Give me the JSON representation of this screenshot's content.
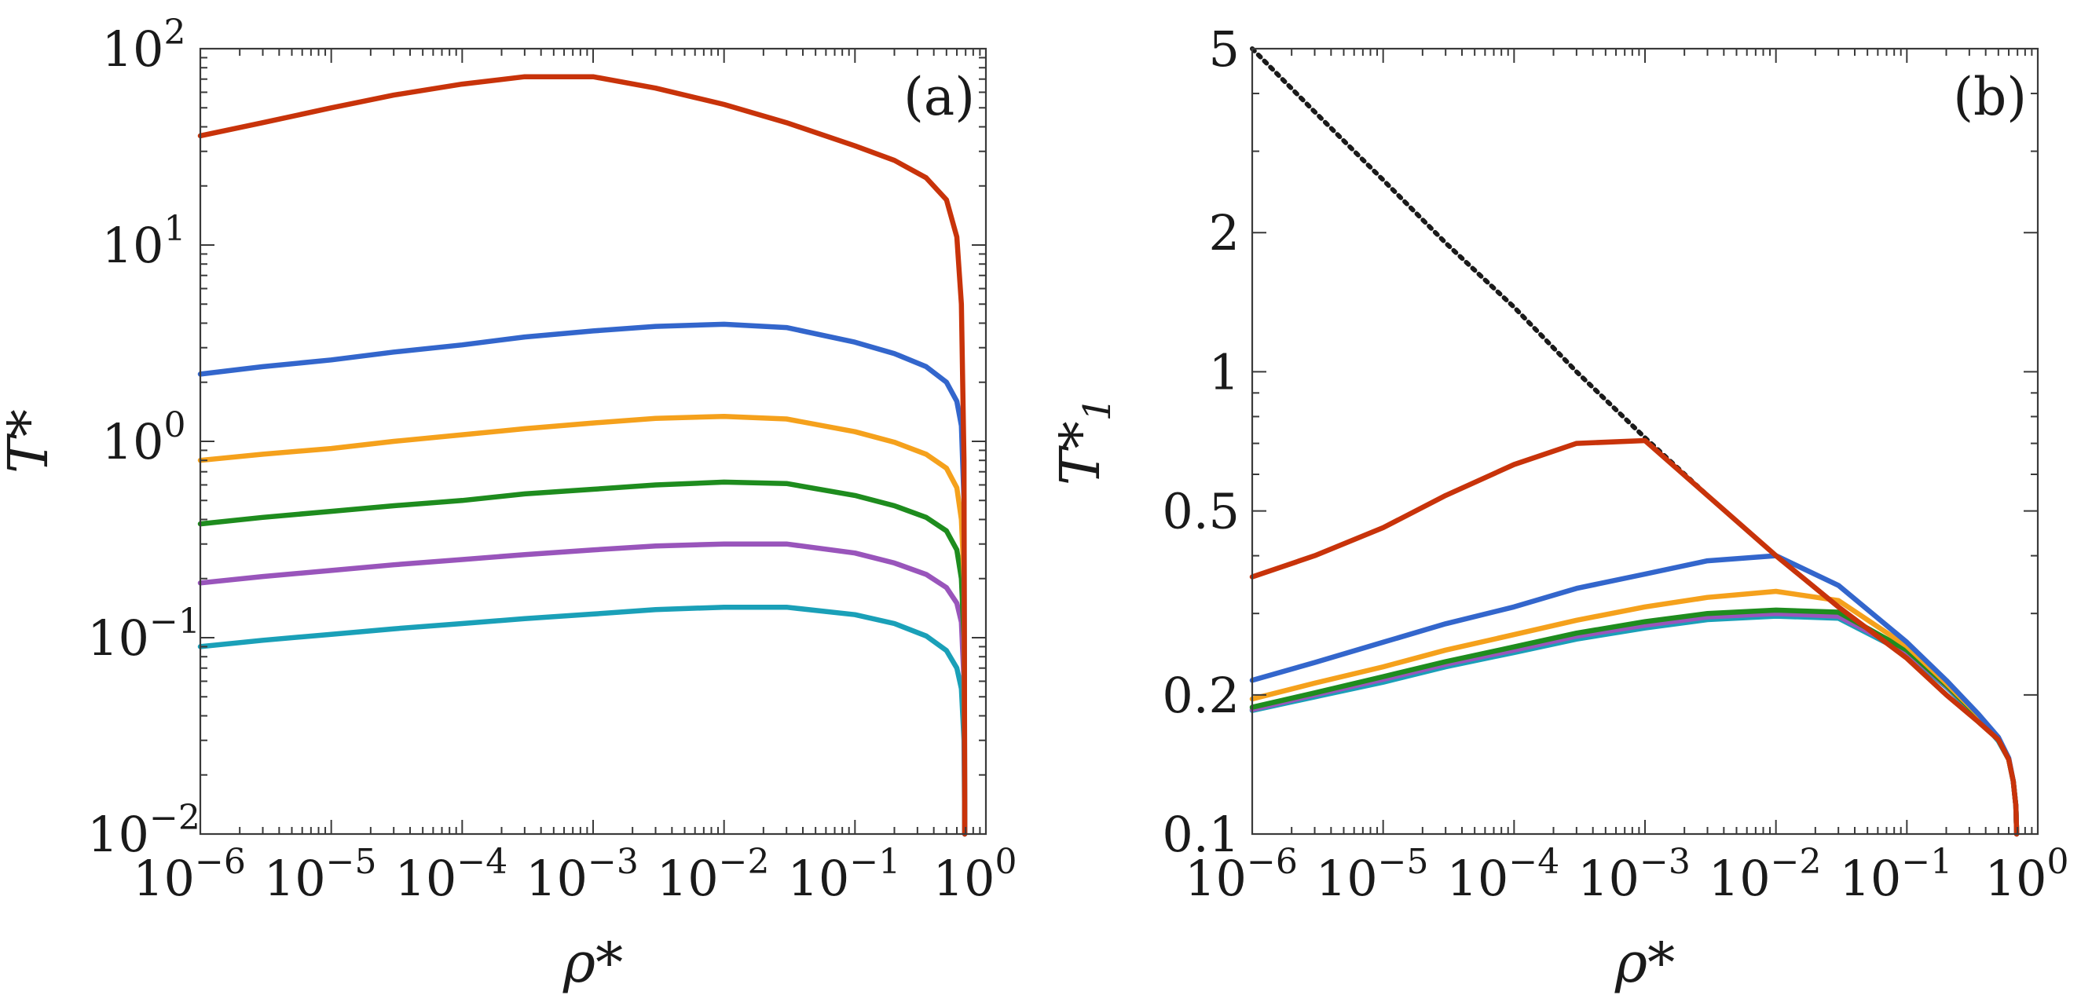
{
  "chart_data": [
    {
      "type": "line",
      "panel_label": "(a)",
      "xscale": "log",
      "yscale": "log",
      "xlim": [
        1e-06,
        1
      ],
      "ylim": [
        0.01,
        100
      ],
      "xlabel": "ρ*",
      "ylabel": "T*",
      "x_tick_labels": [
        {
          "base": "10",
          "exp": "−6"
        },
        {
          "base": "10",
          "exp": "−5"
        },
        {
          "base": "10",
          "exp": "−4"
        },
        {
          "base": "10",
          "exp": "−3"
        },
        {
          "base": "10",
          "exp": "−2"
        },
        {
          "base": "10",
          "exp": "−1"
        },
        {
          "base": "10",
          "exp": "0"
        }
      ],
      "y_tick_labels": [
        {
          "base": "10",
          "exp": "−2"
        },
        {
          "base": "10",
          "exp": "−1"
        },
        {
          "base": "10",
          "exp": "0"
        },
        {
          "base": "10",
          "exp": "1"
        },
        {
          "base": "10",
          "exp": "2"
        }
      ],
      "x": [
        1e-06,
        3e-06,
        1e-05,
        3e-05,
        0.0001,
        0.0003,
        0.001,
        0.003,
        0.01,
        0.03,
        0.1,
        0.2,
        0.35,
        0.5,
        0.6,
        0.65,
        0.68,
        0.69
      ],
      "series": [
        {
          "name": "curve-1",
          "color": "#c8330a",
          "values": [
            36,
            42,
            50,
            58,
            66,
            72,
            72,
            63,
            52,
            42,
            32,
            27,
            22,
            17,
            11,
            5,
            0.8,
            0.01
          ]
        },
        {
          "name": "curve-2",
          "color": "#3366cc",
          "values": [
            2.2,
            2.4,
            2.6,
            2.85,
            3.1,
            3.4,
            3.65,
            3.85,
            3.95,
            3.8,
            3.2,
            2.8,
            2.4,
            2.0,
            1.6,
            1.2,
            0.5,
            0.01
          ]
        },
        {
          "name": "curve-3",
          "color": "#f5a11c",
          "values": [
            0.8,
            0.86,
            0.92,
            1.0,
            1.08,
            1.16,
            1.24,
            1.31,
            1.34,
            1.3,
            1.12,
            0.99,
            0.86,
            0.73,
            0.58,
            0.4,
            0.2,
            0.01
          ]
        },
        {
          "name": "curve-4",
          "color": "#1e8c1e",
          "values": [
            0.38,
            0.41,
            0.44,
            0.47,
            0.5,
            0.54,
            0.57,
            0.6,
            0.62,
            0.61,
            0.53,
            0.47,
            0.41,
            0.35,
            0.28,
            0.2,
            0.1,
            0.01
          ]
        },
        {
          "name": "curve-5",
          "color": "#9955bb",
          "values": [
            0.19,
            0.205,
            0.22,
            0.235,
            0.25,
            0.265,
            0.28,
            0.293,
            0.3,
            0.3,
            0.27,
            0.24,
            0.21,
            0.18,
            0.15,
            0.12,
            0.06,
            0.01
          ]
        },
        {
          "name": "curve-6",
          "color": "#1aa0b8",
          "values": [
            0.09,
            0.097,
            0.104,
            0.111,
            0.118,
            0.125,
            0.132,
            0.139,
            0.143,
            0.143,
            0.131,
            0.118,
            0.102,
            0.086,
            0.07,
            0.055,
            0.03,
            0.01
          ]
        }
      ]
    },
    {
      "type": "line",
      "panel_label": "(b)",
      "xscale": "log",
      "yscale": "log",
      "xlim": [
        1e-06,
        1
      ],
      "ylim": [
        0.1,
        5
      ],
      "xlabel": "ρ*",
      "ylabel": "T*",
      "ylabel_subscript": "1",
      "x_tick_labels": [
        {
          "base": "10",
          "exp": "−6"
        },
        {
          "base": "10",
          "exp": "−5"
        },
        {
          "base": "10",
          "exp": "−4"
        },
        {
          "base": "10",
          "exp": "−3"
        },
        {
          "base": "10",
          "exp": "−2"
        },
        {
          "base": "10",
          "exp": "−1"
        },
        {
          "base": "10",
          "exp": "0"
        }
      ],
      "y_ticks": [
        0.1,
        0.2,
        0.5,
        1,
        2,
        5
      ],
      "y_tick_labels": [
        "0.1",
        "0.2",
        "0.5",
        "1",
        "2",
        "5"
      ],
      "x": [
        1e-06,
        3e-06,
        1e-05,
        3e-05,
        0.0001,
        0.0003,
        0.001,
        0.003,
        0.01,
        0.03,
        0.1,
        0.2,
        0.35,
        0.5,
        0.6,
        0.65,
        0.68,
        0.69
      ],
      "reference": {
        "name": "dotted-limit",
        "color": "#1a1a1a",
        "values": [
          5.0,
          3.65,
          2.6,
          1.9,
          1.38,
          1.0,
          0.72,
          0.54,
          0.4,
          0.31,
          0.24,
          0.2,
          0.175,
          0.16,
          0.145,
          0.13,
          0.115,
          0.1
        ]
      },
      "series": [
        {
          "name": "curve-1",
          "color": "#c8330a",
          "values": [
            0.36,
            0.4,
            0.46,
            0.54,
            0.63,
            0.7,
            0.71,
            0.54,
            0.4,
            0.31,
            0.24,
            0.2,
            0.175,
            0.16,
            0.145,
            0.13,
            0.115,
            0.1
          ]
        },
        {
          "name": "curve-2",
          "color": "#3366cc",
          "values": [
            0.215,
            0.235,
            0.26,
            0.285,
            0.31,
            0.34,
            0.365,
            0.39,
            0.4,
            0.345,
            0.26,
            0.215,
            0.182,
            0.162,
            0.146,
            0.13,
            0.115,
            0.1
          ]
        },
        {
          "name": "curve-3",
          "color": "#f5a11c",
          "values": [
            0.196,
            0.212,
            0.23,
            0.25,
            0.27,
            0.29,
            0.31,
            0.325,
            0.335,
            0.32,
            0.255,
            0.212,
            0.181,
            0.161,
            0.145,
            0.13,
            0.115,
            0.1
          ]
        },
        {
          "name": "curve-4",
          "color": "#1e8c1e",
          "values": [
            0.188,
            0.202,
            0.219,
            0.236,
            0.254,
            0.272,
            0.288,
            0.3,
            0.305,
            0.302,
            0.25,
            0.21,
            0.18,
            0.16,
            0.145,
            0.13,
            0.115,
            0.1
          ]
        },
        {
          "name": "curve-5",
          "color": "#9955bb",
          "values": [
            0.186,
            0.2,
            0.216,
            0.233,
            0.25,
            0.268,
            0.283,
            0.295,
            0.3,
            0.296,
            0.248,
            0.209,
            0.18,
            0.16,
            0.145,
            0.13,
            0.115,
            0.1
          ]
        },
        {
          "name": "curve-6",
          "color": "#1aa0b8",
          "values": [
            0.185,
            0.198,
            0.213,
            0.23,
            0.247,
            0.264,
            0.279,
            0.291,
            0.296,
            0.293,
            0.246,
            0.208,
            0.179,
            0.159,
            0.145,
            0.13,
            0.115,
            0.1
          ]
        }
      ]
    }
  ]
}
